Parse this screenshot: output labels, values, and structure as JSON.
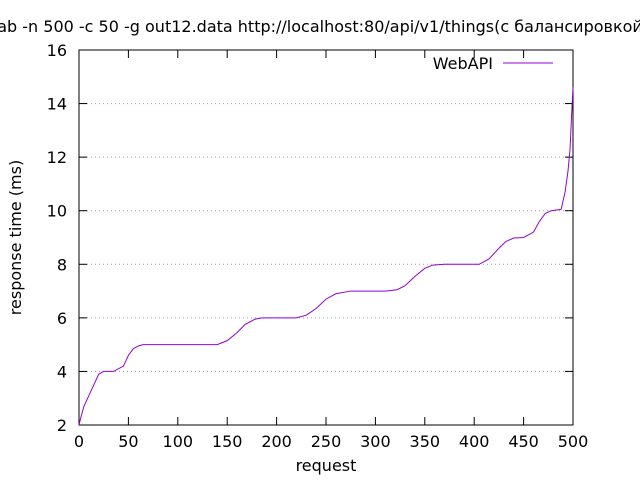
{
  "chart_data": {
    "type": "line",
    "title": "ab -n 500 -c 50 -g out12.data http://localhost:80/api/v1/things(с балансировкой",
    "xlabel": "request",
    "ylabel": "response time (ms)",
    "xlim": [
      0,
      500
    ],
    "ylim": [
      2,
      16
    ],
    "xticks": [
      0,
      50,
      100,
      150,
      200,
      250,
      300,
      350,
      400,
      450,
      500
    ],
    "yticks": [
      2,
      4,
      6,
      8,
      10,
      12,
      14,
      16
    ],
    "grid": "horizontal-dotted",
    "legend_position": "top-right",
    "series": [
      {
        "name": "WebAPI",
        "color": "#9400d3",
        "points": [
          [
            0,
            2
          ],
          [
            2,
            2.3
          ],
          [
            5,
            2.7
          ],
          [
            10,
            3.1
          ],
          [
            15,
            3.5
          ],
          [
            20,
            3.9
          ],
          [
            25,
            4
          ],
          [
            35,
            4
          ],
          [
            45,
            4.2
          ],
          [
            50,
            4.6
          ],
          [
            55,
            4.85
          ],
          [
            60,
            4.95
          ],
          [
            65,
            5
          ],
          [
            100,
            5
          ],
          [
            140,
            5
          ],
          [
            150,
            5.15
          ],
          [
            160,
            5.45
          ],
          [
            168,
            5.75
          ],
          [
            178,
            5.95
          ],
          [
            185,
            6
          ],
          [
            220,
            6
          ],
          [
            230,
            6.1
          ],
          [
            240,
            6.35
          ],
          [
            250,
            6.7
          ],
          [
            260,
            6.9
          ],
          [
            275,
            7
          ],
          [
            310,
            7
          ],
          [
            322,
            7.05
          ],
          [
            330,
            7.2
          ],
          [
            340,
            7.55
          ],
          [
            350,
            7.85
          ],
          [
            358,
            7.97
          ],
          [
            370,
            8
          ],
          [
            405,
            8
          ],
          [
            415,
            8.2
          ],
          [
            425,
            8.6
          ],
          [
            432,
            8.85
          ],
          [
            440,
            8.98
          ],
          [
            450,
            9
          ],
          [
            460,
            9.2
          ],
          [
            466,
            9.6
          ],
          [
            472,
            9.9
          ],
          [
            478,
            10
          ],
          [
            488,
            10.05
          ],
          [
            492,
            10.7
          ],
          [
            495,
            11.5
          ],
          [
            497,
            12.3
          ],
          [
            498.5,
            13.5
          ],
          [
            500,
            14.6
          ]
        ]
      }
    ]
  }
}
